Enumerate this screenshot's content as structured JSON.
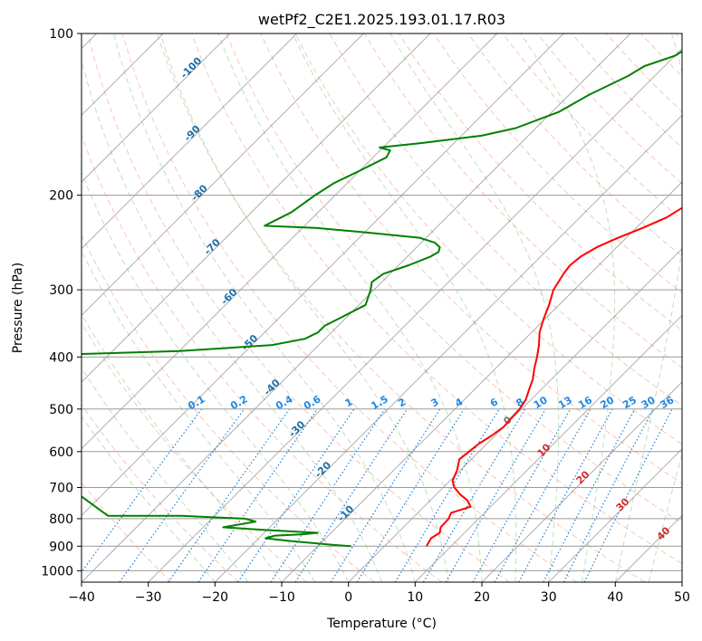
{
  "title": "wetPf2_C2E1.2025.193.01.17.R03",
  "chart_data": {
    "type": "skew-t",
    "title": "wetPf2_C2E1.2025.193.01.17.R03",
    "xlabel": "Temperature (°C)",
    "ylabel": "Pressure (hPa)",
    "xlim": [
      -40,
      50
    ],
    "ylim": [
      1050,
      100
    ],
    "y_scale": "log",
    "x_ticks": [
      "−40",
      "−30",
      "−20",
      "−10",
      "0",
      "10",
      "20",
      "30",
      "40",
      "50"
    ],
    "y_ticks": [
      "100",
      "200",
      "300",
      "400",
      "500",
      "600",
      "700",
      "800",
      "900",
      "1000"
    ],
    "grid": true,
    "series": [
      {
        "color": "#ff0000",
        "p": [
          900,
          870,
          850,
          830,
          800,
          780,
          760,
          740,
          720,
          700,
          680,
          650,
          620,
          600,
          580,
          560,
          540,
          520,
          500,
          480,
          460,
          440,
          420,
          400,
          380,
          360,
          340,
          320,
          300,
          280,
          270,
          260,
          250,
          240,
          230,
          220,
          210,
          200,
          190,
          180,
          170,
          160,
          150,
          140,
          130,
          120,
          115,
          110,
          105,
          100
        ],
        "t": [
          6.3,
          5.8,
          6.3,
          5.6,
          5.5,
          5.0,
          7.0,
          5.6,
          3.5,
          1.7,
          0.4,
          -0.5,
          -1.8,
          -1.5,
          -1.2,
          -0.5,
          0.0,
          -0.2,
          -0.3,
          -0.8,
          -1.8,
          -2.8,
          -4.2,
          -5.5,
          -7.0,
          -8.8,
          -10.2,
          -11.5,
          -13.1,
          -14.0,
          -14.3,
          -14.0,
          -13.0,
          -11.2,
          -9.0,
          -7.0,
          -6.0,
          -5.5,
          -5.2,
          -5.5,
          -6.0,
          -7.0,
          -9.0,
          -11.5,
          -14.5,
          -17.5,
          -18.5,
          -19.0,
          -20.0,
          -20.5
        ]
      },
      {
        "color": "#008000",
        "p": [
          900,
          895,
          880,
          870,
          860,
          855,
          850,
          840,
          830,
          820,
          810,
          800,
          790,
          790,
          700,
          600,
          500,
          420,
          400,
          390,
          380,
          370,
          360,
          350,
          340,
          320,
          300,
          290,
          280,
          270,
          260,
          255,
          250,
          245,
          240,
          235,
          230,
          228,
          215,
          200,
          190,
          180,
          170,
          165,
          163,
          160,
          155,
          150,
          140,
          130,
          120,
          115,
          110,
          105,
          100
        ],
        "t": [
          -5.0,
          -8.0,
          -15.0,
          -19.0,
          -18.0,
          -14.0,
          -12.0,
          -20.0,
          -27.0,
          -25.0,
          -23.0,
          -25.0,
          -35.0,
          -46.0,
          -56.0,
          -67.0,
          -77.0,
          -87.0,
          -89.0,
          -60.0,
          -47.0,
          -43.0,
          -42.0,
          -42.0,
          -41.0,
          -39.0,
          -40.5,
          -41.5,
          -41.0,
          -38.5,
          -36.5,
          -36.0,
          -36.5,
          -38.0,
          -41.0,
          -49.0,
          -58.0,
          -66.0,
          -64.0,
          -63.0,
          -62.0,
          -60.0,
          -58.0,
          -58.5,
          -60.5,
          -55.0,
          -47.0,
          -43.0,
          -39.0,
          -37.0,
          -34.0,
          -33.0,
          -30.0,
          -29.0,
          -29.0
        ]
      }
    ],
    "isotherm_labels": [
      "-100",
      "-90",
      "-80",
      "-70",
      "-60",
      "-50",
      "-40",
      "-30",
      "-20",
      "-10",
      "0",
      "10",
      "20",
      "30",
      "40"
    ],
    "mixing_ratio_labels": [
      "0.1",
      "0.2",
      "0.4",
      "0.6",
      "1",
      "1.5",
      "2",
      "3",
      "4",
      "6",
      "8",
      "10",
      "13",
      "16",
      "20",
      "25",
      "30",
      "36"
    ]
  }
}
